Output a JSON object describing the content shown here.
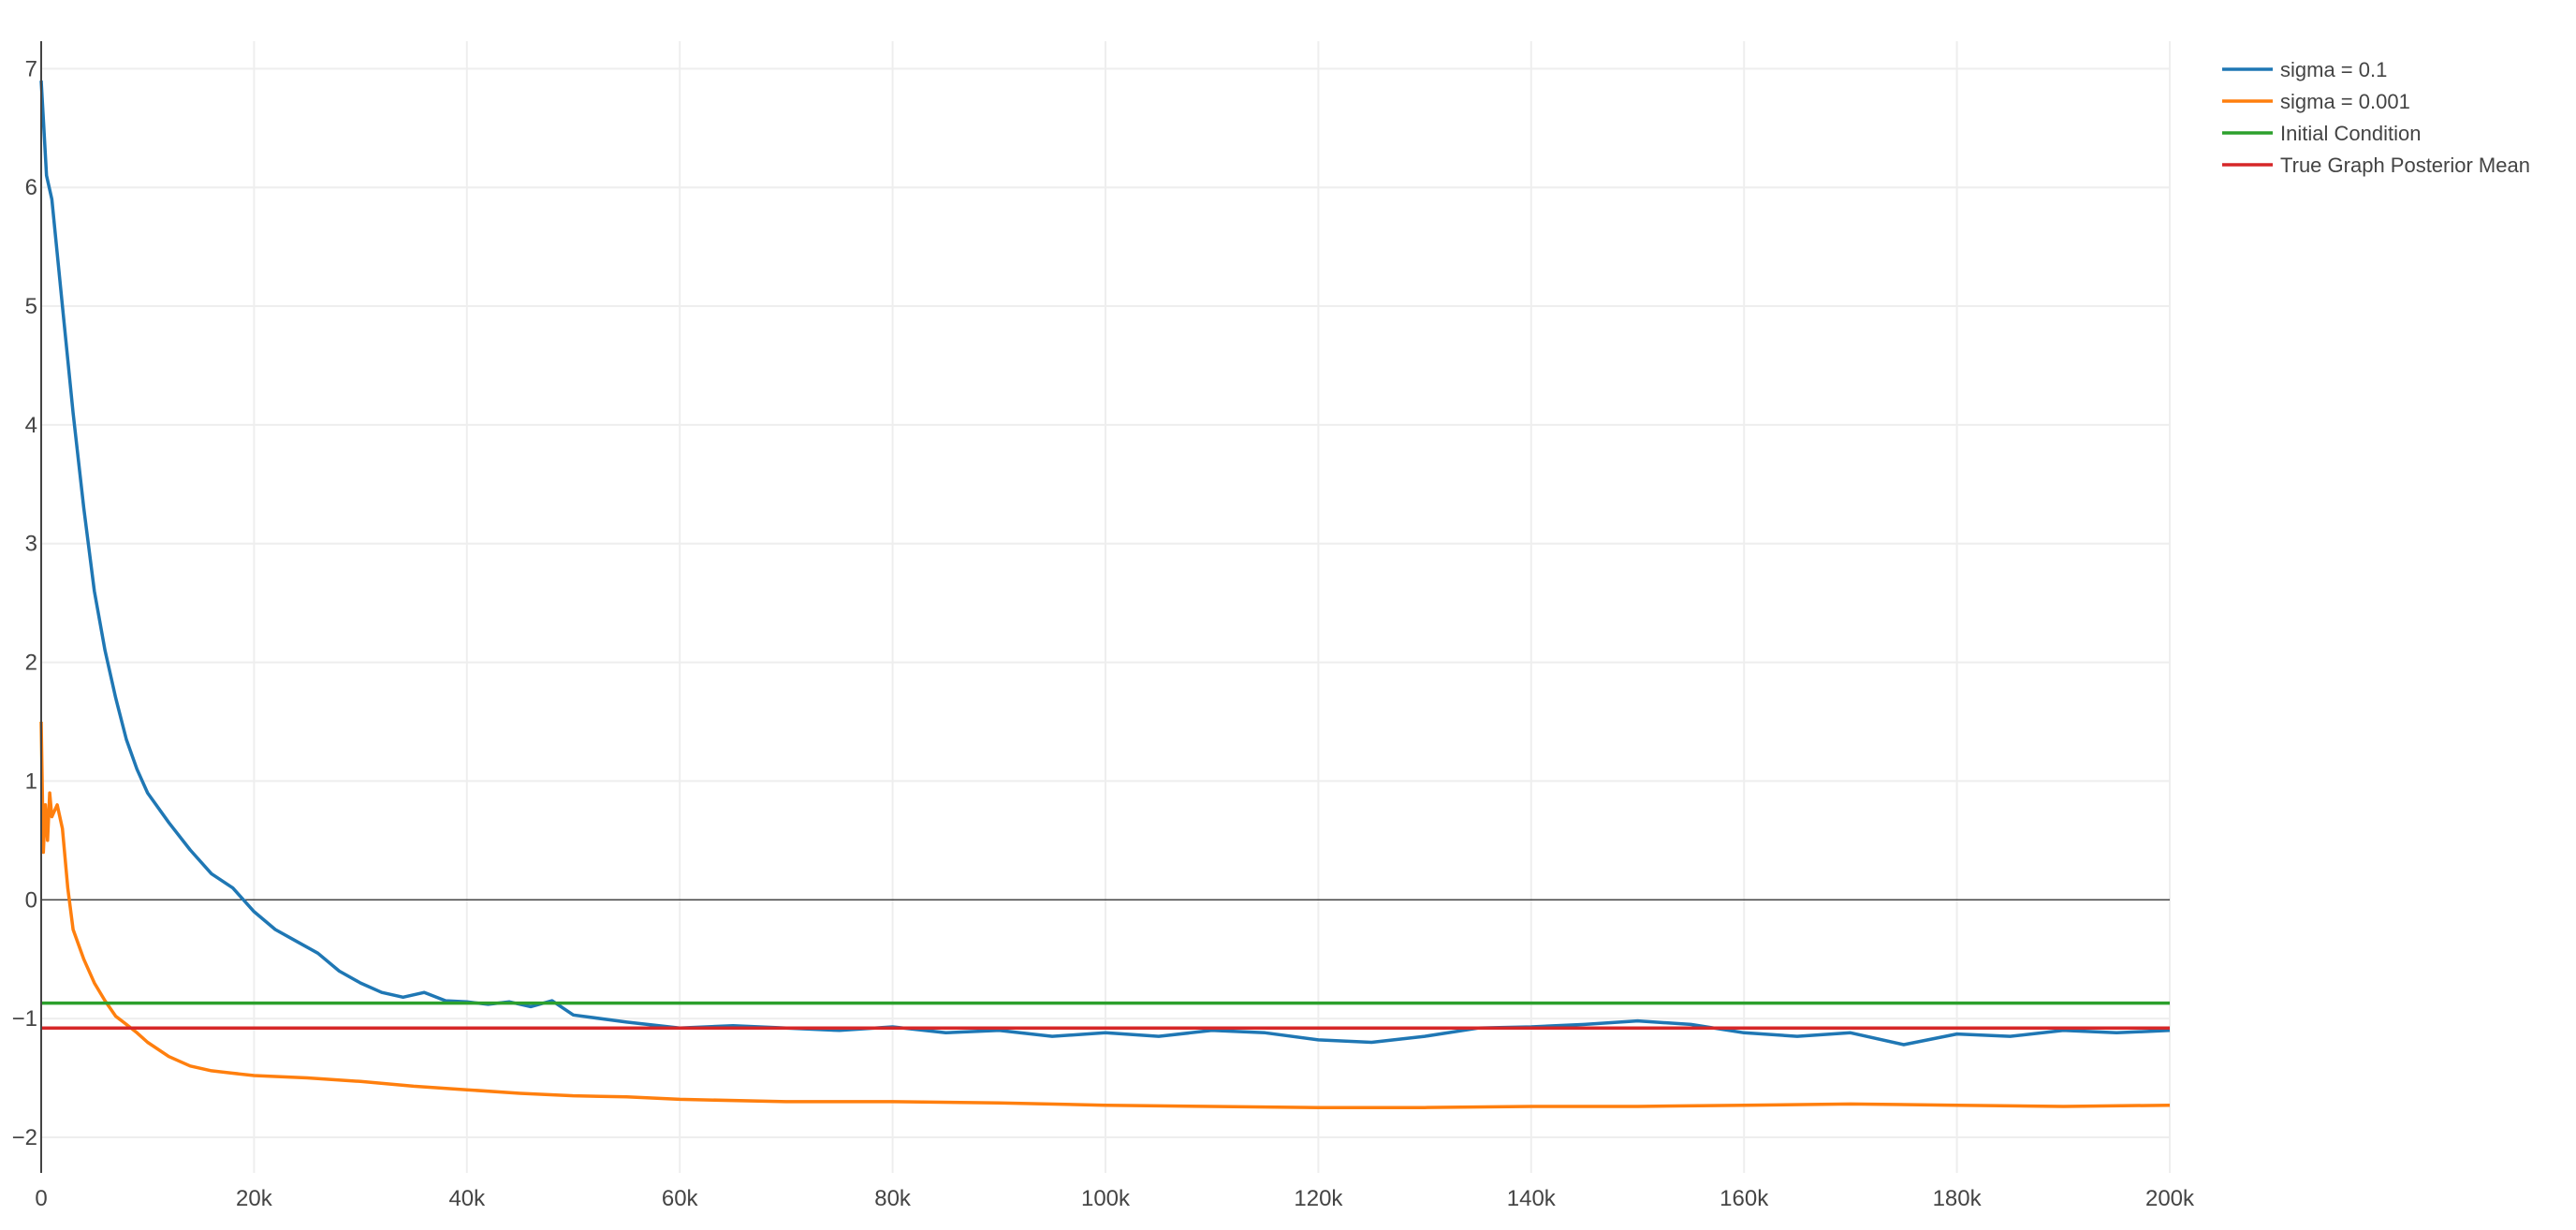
{
  "chart_data": {
    "type": "line",
    "title": "",
    "xlabel": "",
    "ylabel": "",
    "xlim": [
      0,
      200000
    ],
    "ylim": [
      -2.3,
      7.2
    ],
    "x_ticks": [
      0,
      20000,
      40000,
      60000,
      80000,
      100000,
      120000,
      140000,
      160000,
      180000,
      200000
    ],
    "x_tick_labels": [
      "0",
      "20k",
      "40k",
      "60k",
      "80k",
      "100k",
      "120k",
      "140k",
      "160k",
      "180k",
      "200k"
    ],
    "y_ticks": [
      -2,
      -1,
      0,
      1,
      2,
      3,
      4,
      5,
      6,
      7
    ],
    "y_tick_labels": [
      "−2",
      "−1",
      "0",
      "1",
      "2",
      "3",
      "4",
      "5",
      "6",
      "7"
    ],
    "grid": true,
    "zero_line": true,
    "legend_position": "top-right",
    "series": [
      {
        "name": "sigma = 0.1",
        "color": "#1f77b4",
        "x": [
          0,
          500,
          1000,
          2000,
          3000,
          4000,
          5000,
          6000,
          7000,
          8000,
          9000,
          10000,
          12000,
          14000,
          16000,
          18000,
          20000,
          22000,
          24000,
          26000,
          28000,
          30000,
          32000,
          34000,
          36000,
          38000,
          40000,
          42000,
          44000,
          46000,
          48000,
          50000,
          55000,
          60000,
          65000,
          70000,
          75000,
          80000,
          85000,
          90000,
          95000,
          100000,
          105000,
          110000,
          115000,
          120000,
          125000,
          130000,
          135000,
          140000,
          145000,
          150000,
          155000,
          160000,
          165000,
          170000,
          175000,
          180000,
          185000,
          190000,
          195000,
          200000
        ],
        "y": [
          6.9,
          6.1,
          5.9,
          5.0,
          4.1,
          3.3,
          2.6,
          2.1,
          1.7,
          1.35,
          1.1,
          0.9,
          0.65,
          0.42,
          0.22,
          0.1,
          -0.1,
          -0.25,
          -0.35,
          -0.45,
          -0.6,
          -0.7,
          -0.78,
          -0.82,
          -0.78,
          -0.85,
          -0.86,
          -0.88,
          -0.86,
          -0.9,
          -0.85,
          -0.97,
          -1.03,
          -1.08,
          -1.06,
          -1.08,
          -1.1,
          -1.07,
          -1.12,
          -1.1,
          -1.15,
          -1.12,
          -1.15,
          -1.1,
          -1.12,
          -1.18,
          -1.2,
          -1.15,
          -1.08,
          -1.07,
          -1.05,
          -1.02,
          -1.05,
          -1.12,
          -1.15,
          -1.12,
          -1.22,
          -1.13,
          -1.15,
          -1.1,
          -1.12,
          -1.1
        ]
      },
      {
        "name": "sigma = 0.001",
        "color": "#ff7f0e",
        "x": [
          0,
          200,
          400,
          600,
          800,
          1000,
          1500,
          2000,
          2500,
          3000,
          4000,
          5000,
          6000,
          7000,
          8000,
          9000,
          10000,
          12000,
          14000,
          16000,
          18000,
          20000,
          25000,
          30000,
          35000,
          40000,
          45000,
          50000,
          55000,
          60000,
          70000,
          80000,
          90000,
          100000,
          110000,
          120000,
          130000,
          140000,
          150000,
          160000,
          170000,
          180000,
          190000,
          200000
        ],
        "y": [
          1.5,
          0.4,
          0.8,
          0.5,
          0.9,
          0.7,
          0.8,
          0.6,
          0.1,
          -0.25,
          -0.5,
          -0.7,
          -0.85,
          -0.98,
          -1.05,
          -1.12,
          -1.2,
          -1.32,
          -1.4,
          -1.44,
          -1.46,
          -1.48,
          -1.5,
          -1.53,
          -1.57,
          -1.6,
          -1.63,
          -1.65,
          -1.66,
          -1.68,
          -1.7,
          -1.7,
          -1.71,
          -1.73,
          -1.74,
          -1.75,
          -1.75,
          -1.74,
          -1.74,
          -1.73,
          -1.72,
          -1.73,
          -1.74,
          -1.73
        ]
      },
      {
        "name": "Initial Condition",
        "color": "#2ca02c",
        "x": [
          0,
          200000
        ],
        "y": [
          -0.87,
          -0.87
        ]
      },
      {
        "name": "True Graph Posterior Mean",
        "color": "#d62728",
        "x": [
          0,
          200000
        ],
        "y": [
          -1.08,
          -1.08
        ]
      }
    ]
  }
}
